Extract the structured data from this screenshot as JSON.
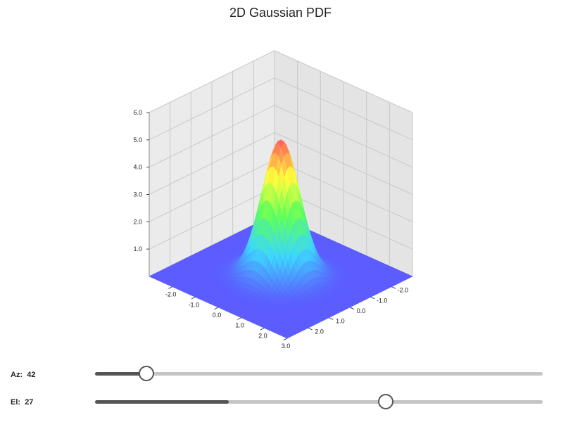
{
  "chart_data": {
    "type": "surface3d",
    "title": "2D Gaussian PDF",
    "function": "2D Gaussian probability density",
    "x_ticks": [
      "-2.0",
      "-1.0",
      "0.0",
      "1.0",
      "2.0",
      "3.0"
    ],
    "y_ticks": [
      "-2.0",
      "-1.0",
      "0.0",
      "1.0",
      "2.0"
    ],
    "z_ticks": [
      "1.0",
      "2.0",
      "3.0",
      "4.0",
      "5.0",
      "6.0"
    ],
    "xlim": [
      -3,
      3
    ],
    "ylim": [
      -3,
      3
    ],
    "zlim": [
      0,
      6
    ],
    "peak": {
      "x": 0.0,
      "y": 0.0,
      "z": 5.0
    },
    "colormap": [
      "#5c5cff",
      "#3cd7ff",
      "#5cff5c",
      "#ffff3c",
      "#ff5c5c"
    ],
    "grid": true
  },
  "controls": {
    "az": {
      "label": "Az:",
      "value": "42",
      "fraction": 0.115,
      "fill_fraction": 0.115
    },
    "el": {
      "label": "El:",
      "value": "27",
      "fraction": 0.65,
      "fill_fraction": 0.298
    }
  }
}
